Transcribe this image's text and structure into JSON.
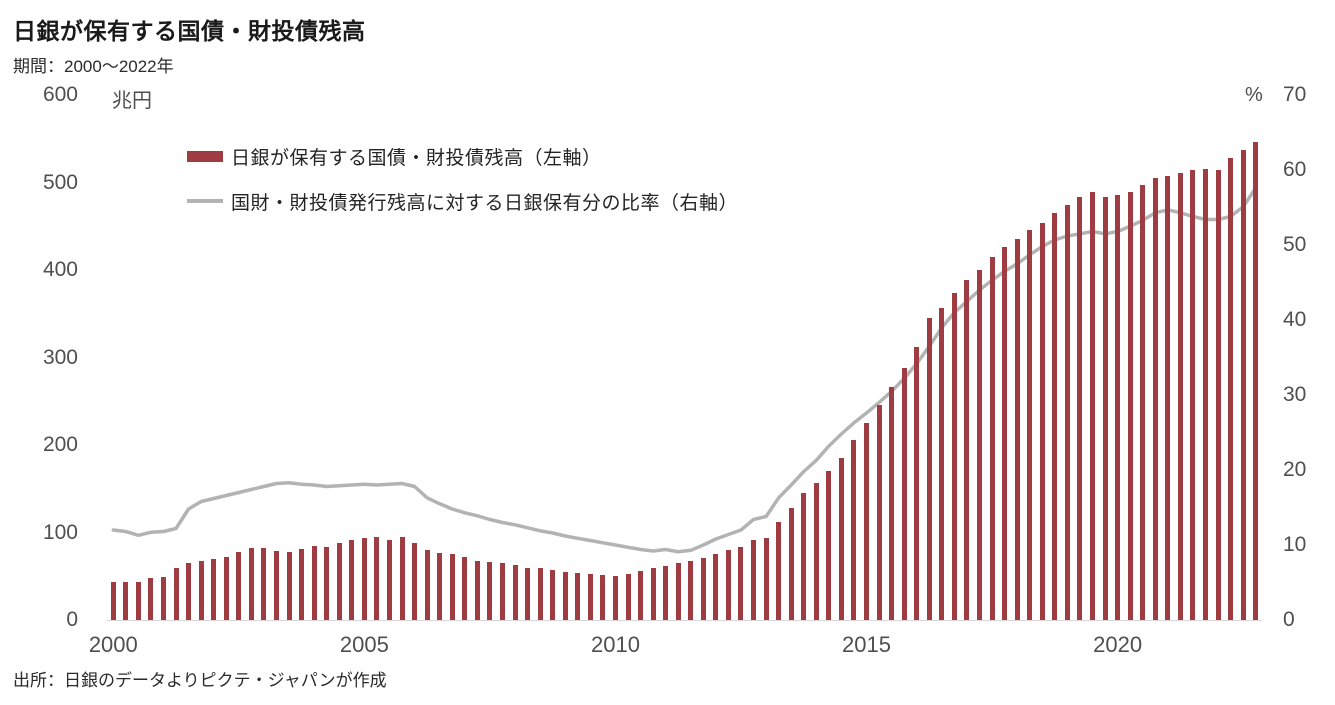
{
  "header": {
    "title": "日銀が保有する国債・財投債残高",
    "subtitle": "期間：2000～2022年"
  },
  "source": "出所：日銀のデータよりピクテ・ジャパンが作成",
  "legend": [
    {
      "label": "日銀が保有する国債・財投債残高（左軸）",
      "swatch": "bar",
      "color": "#9e3c42"
    },
    {
      "label": "国財・財投債発行残高に対する日銀保有分の比率（右軸）",
      "swatch": "line",
      "color": "#b3b3b3"
    }
  ],
  "left_axis": {
    "unit": "兆円",
    "ticks": [
      600,
      500,
      400,
      300,
      200,
      100,
      0
    ]
  },
  "right_axis": {
    "unit": "%",
    "ticks": [
      70,
      60,
      50,
      40,
      30,
      20,
      10,
      0
    ]
  },
  "x_axis": {
    "labels": [
      {
        "text": "2000",
        "index": 0
      },
      {
        "text": "2005",
        "index": 20
      },
      {
        "text": "2010",
        "index": 40
      },
      {
        "text": "2015",
        "index": 60
      },
      {
        "text": "2020",
        "index": 80
      }
    ]
  },
  "chart_data": {
    "type": "combo",
    "title": "日銀が保有する国債・財投債残高",
    "period_note": "期間：2000～2022年 (quarterly)",
    "left_ylim": [
      0,
      600
    ],
    "right_ylim": [
      0,
      70
    ],
    "left_unit": "兆円",
    "right_unit": "%",
    "grid": false,
    "legend_position": "top-left",
    "periods": [
      "2000Q1",
      "2000Q2",
      "2000Q3",
      "2000Q4",
      "2001Q1",
      "2001Q2",
      "2001Q3",
      "2001Q4",
      "2002Q1",
      "2002Q2",
      "2002Q3",
      "2002Q4",
      "2003Q1",
      "2003Q2",
      "2003Q3",
      "2003Q4",
      "2004Q1",
      "2004Q2",
      "2004Q3",
      "2004Q4",
      "2005Q1",
      "2005Q2",
      "2005Q3",
      "2005Q4",
      "2006Q1",
      "2006Q2",
      "2006Q3",
      "2006Q4",
      "2007Q1",
      "2007Q2",
      "2007Q3",
      "2007Q4",
      "2008Q1",
      "2008Q2",
      "2008Q3",
      "2008Q4",
      "2009Q1",
      "2009Q2",
      "2009Q3",
      "2009Q4",
      "2010Q1",
      "2010Q2",
      "2010Q3",
      "2010Q4",
      "2011Q1",
      "2011Q2",
      "2011Q3",
      "2011Q4",
      "2012Q1",
      "2012Q2",
      "2012Q3",
      "2012Q4",
      "2013Q1",
      "2013Q2",
      "2013Q3",
      "2013Q4",
      "2014Q1",
      "2014Q2",
      "2014Q3",
      "2014Q4",
      "2015Q1",
      "2015Q2",
      "2015Q3",
      "2015Q4",
      "2016Q1",
      "2016Q2",
      "2016Q3",
      "2016Q4",
      "2017Q1",
      "2017Q2",
      "2017Q3",
      "2017Q4",
      "2018Q1",
      "2018Q2",
      "2018Q3",
      "2018Q4",
      "2019Q1",
      "2019Q2",
      "2019Q3",
      "2019Q4",
      "2020Q1",
      "2020Q2",
      "2020Q3",
      "2020Q4",
      "2021Q1",
      "2021Q2",
      "2021Q3",
      "2021Q4",
      "2022Q1",
      "2022Q2",
      "2022Q3",
      "2022Q4"
    ],
    "series": [
      {
        "name": "日銀が保有する国債・財投債残高（左軸）",
        "type": "bar",
        "axis": "left",
        "unit": "兆円",
        "color": "#9e3c42",
        "values": [
          43,
          43,
          43,
          48,
          49,
          59,
          65,
          68,
          70,
          72,
          78,
          82,
          82,
          79,
          78,
          81,
          85,
          83,
          88,
          91,
          94,
          95,
          91,
          95,
          88,
          80,
          77,
          75,
          72,
          68,
          66,
          65,
          63,
          60,
          59,
          57,
          55,
          54,
          53,
          51,
          50,
          53,
          56,
          59,
          62,
          65,
          68,
          71,
          75,
          80,
          83,
          91,
          94,
          112,
          128,
          145,
          157,
          170,
          185,
          206,
          225,
          246,
          266,
          288,
          312,
          345,
          357,
          374,
          389,
          400,
          415,
          426,
          436,
          446,
          454,
          465,
          474,
          483,
          489,
          483,
          486,
          489,
          497,
          505,
          507,
          511,
          514,
          516,
          514,
          528,
          537,
          546
        ]
      },
      {
        "name": "国財・財投債発行残高に対する日銀保有分の比率（右軸）",
        "type": "line",
        "axis": "right",
        "unit": "%",
        "color": "#b3b3b3",
        "values": [
          12.0,
          11.8,
          11.3,
          11.7,
          11.8,
          12.2,
          14.8,
          15.8,
          16.2,
          16.6,
          17.0,
          17.4,
          17.8,
          18.2,
          18.3,
          18.1,
          18.0,
          17.8,
          17.9,
          18.0,
          18.1,
          18.0,
          18.1,
          18.2,
          17.8,
          16.3,
          15.5,
          14.8,
          14.3,
          13.9,
          13.4,
          13.0,
          12.7,
          12.3,
          11.9,
          11.6,
          11.2,
          10.9,
          10.6,
          10.3,
          10.0,
          9.7,
          9.4,
          9.2,
          9.4,
          9.1,
          9.3,
          10.0,
          10.8,
          11.4,
          12.0,
          13.4,
          13.8,
          16.3,
          18.0,
          19.8,
          21.3,
          23.2,
          24.8,
          26.3,
          27.6,
          29.0,
          30.5,
          32.2,
          34.2,
          36.5,
          39.0,
          41.0,
          42.5,
          44.0,
          45.3,
          46.5,
          47.5,
          48.7,
          49.8,
          50.7,
          51.2,
          51.5,
          51.8,
          51.5,
          51.8,
          52.5,
          53.3,
          54.3,
          54.7,
          54.3,
          53.8,
          53.4,
          53.4,
          53.8,
          55.1,
          57.6
        ]
      }
    ]
  }
}
